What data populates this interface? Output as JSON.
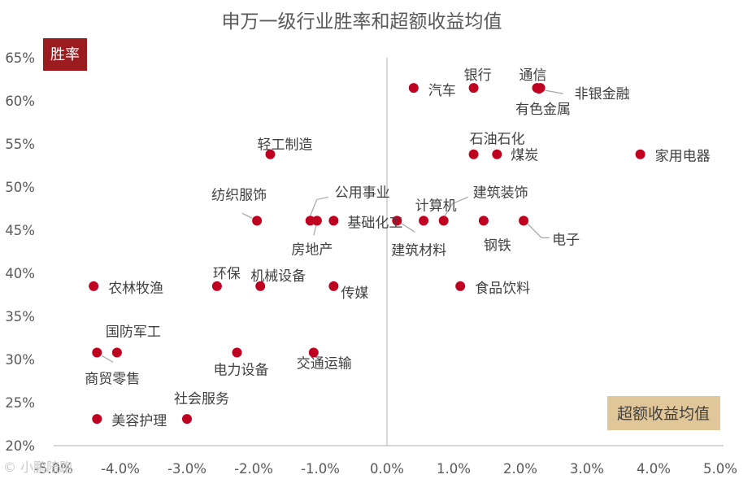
{
  "chart_data": {
    "type": "scatter",
    "title": "申万一级行业胜率和超额收益均值",
    "xlabel": "超额收益均值",
    "ylabel": "胜率",
    "xlim": [
      -5.0,
      5.0
    ],
    "ylim": [
      20,
      65
    ],
    "x_ticks": [
      "-5.0%",
      "-4.0%",
      "-3.0%",
      "-2.0%",
      "-1.0%",
      "0.0%",
      "1.0%",
      "2.0%",
      "3.0%",
      "4.0%",
      "5.0%"
    ],
    "y_ticks": [
      "20%",
      "25%",
      "30%",
      "35%",
      "40%",
      "45%",
      "50%",
      "55%",
      "60%",
      "65%"
    ],
    "point_color": "#c00020",
    "points": [
      {
        "name": "汽车",
        "x": 0.4,
        "y": 61.5
      },
      {
        "name": "银行",
        "x": 1.3,
        "y": 61.5
      },
      {
        "name": "通信",
        "x": 2.25,
        "y": 61.5
      },
      {
        "name": "非银金融",
        "x": 2.3,
        "y": 61.5
      },
      {
        "name": "有色金属",
        "x": 2.28,
        "y": 61.4
      },
      {
        "name": "轻工制造",
        "x": -1.75,
        "y": 53.8
      },
      {
        "name": "石油石化",
        "x": 1.3,
        "y": 53.8
      },
      {
        "name": "煤炭",
        "x": 1.65,
        "y": 53.8
      },
      {
        "name": "家用电器",
        "x": 3.8,
        "y": 53.8
      },
      {
        "name": "纺织服饰",
        "x": -1.95,
        "y": 46.1
      },
      {
        "name": "公用事业",
        "x": -1.15,
        "y": 46.1
      },
      {
        "name": "房地产",
        "x": -1.05,
        "y": 46.1
      },
      {
        "name": "基础化工",
        "x": -0.8,
        "y": 46.1
      },
      {
        "name": "建筑材料",
        "x": 0.15,
        "y": 46.1
      },
      {
        "name": "计算机",
        "x": 0.55,
        "y": 46.1
      },
      {
        "name": "建筑装饰",
        "x": 0.85,
        "y": 46.1
      },
      {
        "name": "钢铁",
        "x": 1.45,
        "y": 46.1
      },
      {
        "name": "电子",
        "x": 2.05,
        "y": 46.1
      },
      {
        "name": "农林牧渔",
        "x": -4.4,
        "y": 38.5
      },
      {
        "name": "环保",
        "x": -2.55,
        "y": 38.5
      },
      {
        "name": "机械设备",
        "x": -1.9,
        "y": 38.5
      },
      {
        "name": "传媒",
        "x": -0.8,
        "y": 38.5
      },
      {
        "name": "食品饮料",
        "x": 1.1,
        "y": 38.5
      },
      {
        "name": "商贸零售",
        "x": -4.35,
        "y": 30.8
      },
      {
        "name": "国防军工",
        "x": -4.05,
        "y": 30.8
      },
      {
        "name": "电力设备",
        "x": -2.25,
        "y": 30.8
      },
      {
        "name": "交通运输",
        "x": -1.1,
        "y": 30.8
      },
      {
        "name": "美容护理",
        "x": -4.35,
        "y": 23.1
      },
      {
        "name": "社会服务",
        "x": -3.0,
        "y": 23.1
      }
    ]
  },
  "colors": {
    "axis": "#bfbfbf",
    "ylabel_bg": "#9b1b1f",
    "xlabel_bg": "#e1c699",
    "text": "#404040"
  },
  "watermark": "© 小鹏陪跑"
}
